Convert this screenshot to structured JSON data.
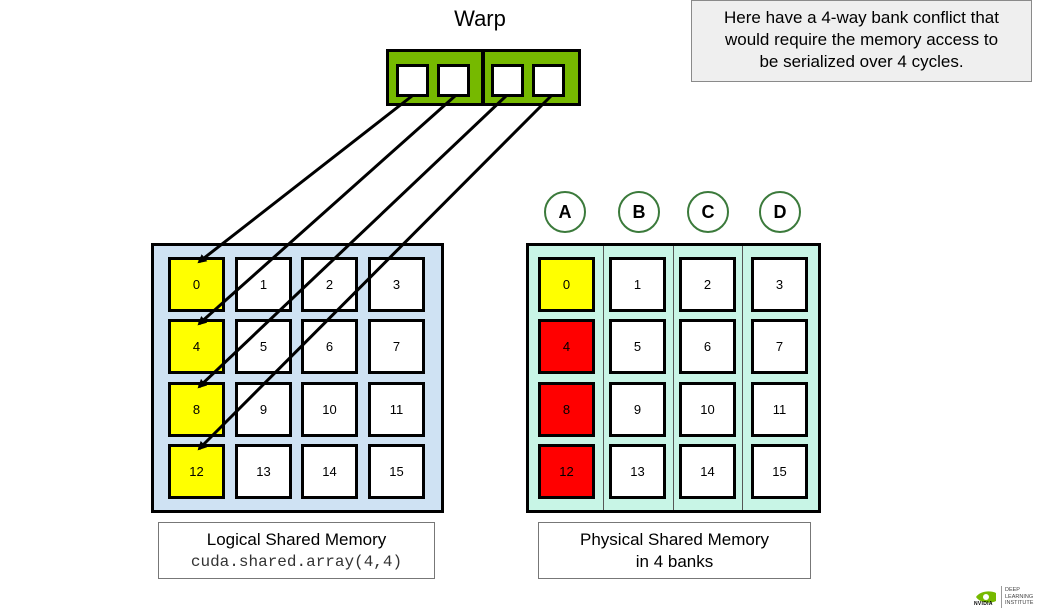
{
  "warp": {
    "title": "Warp",
    "colors": {
      "fill": "#76b900",
      "lane": "#ffffff"
    },
    "lane_count": 4
  },
  "note": {
    "lines": [
      "Here have a 4-way bank conflict that",
      "would require the memory access to",
      "be serialized over 4 cycles."
    ]
  },
  "banks": {
    "labels": [
      "A",
      "B",
      "C",
      "D"
    ]
  },
  "logical_memory": {
    "cells": [
      "0",
      "1",
      "2",
      "3",
      "4",
      "5",
      "6",
      "7",
      "8",
      "9",
      "10",
      "11",
      "12",
      "13",
      "14",
      "15"
    ],
    "highlighted": [
      "0",
      "4",
      "8",
      "12"
    ],
    "colors": {
      "background": "#cfe2f3",
      "highlight": "#ffff00"
    },
    "caption": {
      "line1": "Logical Shared Memory",
      "line2": "cuda.shared.array(4,4)"
    }
  },
  "physical_memory": {
    "cells": [
      "0",
      "1",
      "2",
      "3",
      "4",
      "5",
      "6",
      "7",
      "8",
      "9",
      "10",
      "11",
      "12",
      "13",
      "14",
      "15"
    ],
    "highlighted": [
      "0"
    ],
    "conflicts": [
      "4",
      "8",
      "12"
    ],
    "colors": {
      "background": "#c8f5e6",
      "highlight": "#ffff00",
      "conflict": "#ff0000"
    },
    "caption": {
      "line1": "Physical Shared Memory",
      "line2": "in 4 banks"
    }
  },
  "logo": {
    "brand": "NVIDIA",
    "lines": [
      "DEEP",
      "LEARNING",
      "INSTITUTE"
    ],
    "icon": "nvidia-eye-icon"
  }
}
